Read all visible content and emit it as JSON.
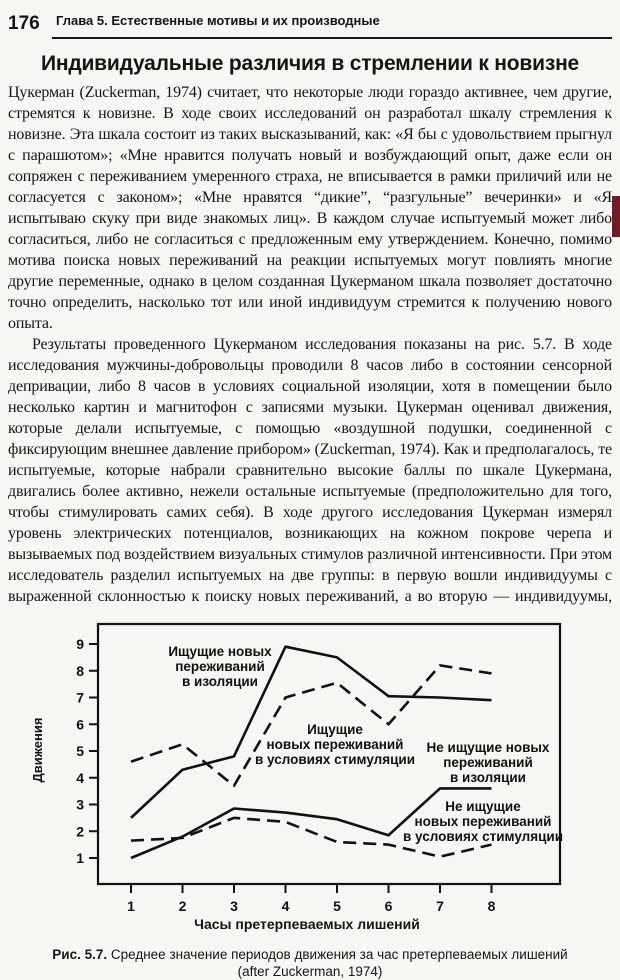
{
  "page": {
    "number": "176",
    "running_head": "Глава 5. Естественные мотивы и их производные"
  },
  "article": {
    "title": "Индивидуальные различия в стремлении к новизне",
    "paragraphs": [
      "Цукерман (Zuckerman, 1974) считает, что некоторые люди гораздо активнее, чем другие, стремятся к новизне. В ходе своих исследований он разработал шкалу стремления к новизне. Эта шкала состоит из таких высказываний, как: «Я бы с удовольствием прыгнул с парашютом»; «Мне нравится получать новый и возбуждающий опыт, даже если он сопряжен с переживанием умеренного страха, не вписывается в рамки приличий или не согласуется с законом»; «Мне нравятся “дикие”, “разгульные” вечеринки» и «Я испытываю скуку при виде знакомых лиц». В каждом случае испытуемый может либо согласиться, либо не согласиться с предложенным ему утверждением. Конечно, помимо мотива поиска новых переживаний на реакции испытуемых могут повлиять многие другие переменные, однако в целом созданная Цукерманом шкала позволяет достаточно точно определить, насколько тот или иной индивидуум стремится к получению нового опыта.",
      "Результаты проведенного Цукерманом исследования показаны на рис. 5.7. В ходе исследования мужчины-добровольцы проводили 8 часов либо в состоянии сенсорной депривации, либо 8 часов в условиях социальной изоляции, хотя в помещении было несколько картин и магнитофон с записями музыки. Цукерман оценивал движения, которые делали испытуемые, с помощью «воздушной подушки, соединенной с фиксирующим внешнее давление прибором» (Zuckerman, 1974). Как и предполагалось, те испытуемые, которые набрали сравнительно высокие баллы по шкале Цукермана, двигались более активно, нежели остальные испытуемые (предположительно для того, чтобы стимулировать самих себя). В ходе другого исследования Цукерман измерял уровень электрических потенциалов, возникающих на кожном покрове черепа и вызываемых под воздействием визуальных стимулов различной интенсивности. При этом исследователь разделил испытуемых на две группы: в первую вошли индивидуумы с выраженной склонностью к поиску новых переживаний, а во вторую — индивидуумы, прак-"
    ]
  },
  "figure": {
    "caption_label": "Рис. 5.7.",
    "caption_text": "Среднее значение периодов движения за час претерпеваемых лишений",
    "caption_source": "(after Zuckerman, 1974)"
  },
  "chart_data": {
    "type": "line",
    "x": [
      1,
      2,
      3,
      4,
      5,
      6,
      7,
      8
    ],
    "xlabel": "Часы претерпеваемых лишений",
    "ylabel": "Движения",
    "yticks": [
      1,
      2,
      3,
      4,
      5,
      6,
      7,
      8,
      9
    ],
    "ylim": [
      0.5,
      9.5
    ],
    "grid": false,
    "legend_position": "inline-annotations",
    "series": [
      {
        "name": "Ищущие новых переживаний в изоляции",
        "style": "solid",
        "values": [
          2.5,
          4.3,
          4.8,
          8.9,
          8.5,
          7.05,
          7.0,
          6.9
        ]
      },
      {
        "name": "Ищущие новых переживаний в условиях стимуляции",
        "style": "dashed",
        "values": [
          4.6,
          5.25,
          3.7,
          7.0,
          7.55,
          6.0,
          8.2,
          7.9
        ]
      },
      {
        "name": "Не ищущие новых переживаний в изоляции",
        "style": "solid",
        "values": [
          1.0,
          1.8,
          2.85,
          2.7,
          2.45,
          1.85,
          3.6,
          3.6
        ]
      },
      {
        "name": "Не ищущие новых переживаний в условиях стимуляции",
        "style": "dashed",
        "values": [
          1.65,
          1.75,
          2.5,
          2.35,
          1.6,
          1.5,
          1.05,
          1.5
        ]
      }
    ],
    "annotations": [
      {
        "x": 168,
        "y": 40,
        "lines": [
          "Ищущие новых",
          "переживаний",
          "в изоляции"
        ]
      },
      {
        "x": 283,
        "y": 118,
        "lines": [
          "Ищущие",
          "новых переживаний",
          "в условиях стимуляции"
        ]
      },
      {
        "x": 436,
        "y": 136,
        "lines": [
          "Не ищущие новых",
          "переживаний",
          "в изоляции"
        ]
      },
      {
        "x": 431,
        "y": 195,
        "lines": [
          "Не ищущие",
          "новых переживаний",
          "в условиях стимуляции"
        ]
      }
    ],
    "line_color": "#111111"
  }
}
